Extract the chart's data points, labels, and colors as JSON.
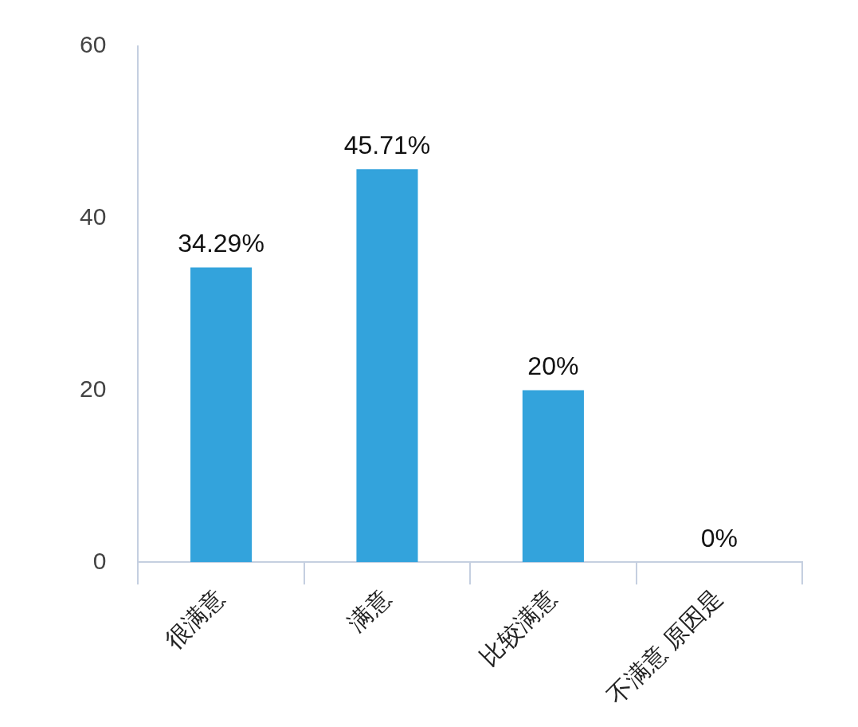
{
  "chart_data": {
    "type": "bar",
    "categories": [
      "很满意",
      "满意",
      "比较满意",
      "不满意 原因是"
    ],
    "values": [
      34.29,
      45.71,
      20,
      0
    ],
    "value_labels": [
      "34.29%",
      "45.71%",
      "20%",
      "0%"
    ],
    "color": "#33a3dc",
    "ylim": [
      0,
      60
    ],
    "yticks": [
      0,
      20,
      40,
      60
    ],
    "grid": false,
    "legend": false
  }
}
